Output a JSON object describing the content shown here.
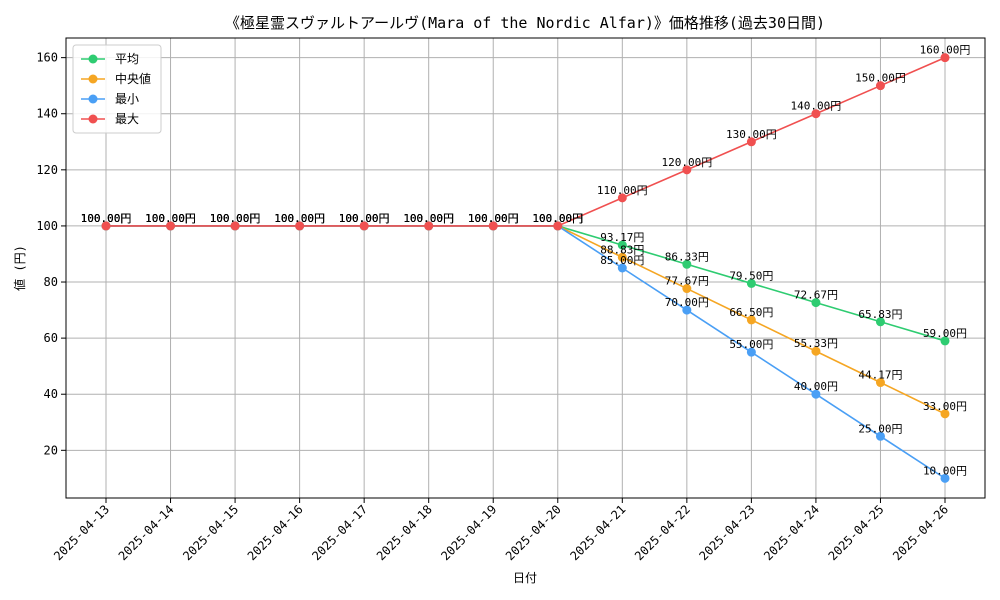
{
  "chart_data": {
    "type": "line",
    "title": "《極星霊スヴァルトアールヴ(Mara of the Nordic Alfar)》価格推移(過去30日間)",
    "xlabel": "日付",
    "ylabel": "値 (円)",
    "x": [
      "2025-04-13",
      "2025-04-14",
      "2025-04-15",
      "2025-04-16",
      "2025-04-17",
      "2025-04-18",
      "2025-04-19",
      "2025-04-20",
      "2025-04-21",
      "2025-04-22",
      "2025-04-23",
      "2025-04-24",
      "2025-04-25",
      "2025-04-26"
    ],
    "ylim": [
      3,
      167
    ],
    "yticks": [
      20,
      40,
      60,
      80,
      100,
      120,
      140,
      160
    ],
    "grid": true,
    "legend_position": "top-left",
    "value_suffix": "円",
    "series": [
      {
        "name": "平均",
        "color": "#2ecc71",
        "values": [
          100,
          100,
          100,
          100,
          100,
          100,
          100,
          100,
          93.17,
          86.33,
          79.5,
          72.67,
          65.83,
          59.0
        ]
      },
      {
        "name": "中央値",
        "color": "#f5a623",
        "values": [
          100,
          100,
          100,
          100,
          100,
          100,
          100,
          100,
          88.83,
          77.67,
          66.5,
          55.33,
          44.17,
          33.0
        ]
      },
      {
        "name": "最小",
        "color": "#4a9ff5",
        "values": [
          100,
          100,
          100,
          100,
          100,
          100,
          100,
          100,
          85.0,
          70.0,
          55.0,
          40.0,
          25.0,
          10.0
        ]
      },
      {
        "name": "最大",
        "color": "#f05050",
        "values": [
          100,
          100,
          100,
          100,
          100,
          100,
          100,
          100,
          110.0,
          120.0,
          130.0,
          140.0,
          150.0,
          160.0
        ]
      }
    ]
  }
}
